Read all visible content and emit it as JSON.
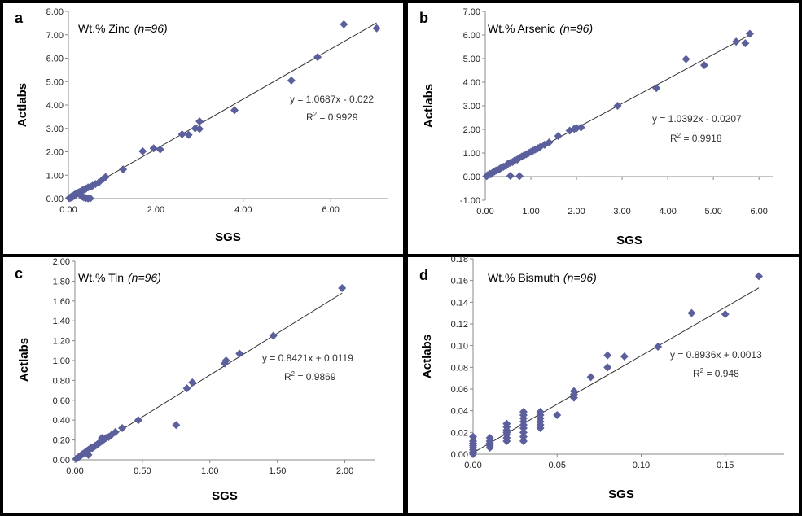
{
  "colors": {
    "marker": "#5B5F9C",
    "axis": "#888888",
    "fit": "#333333"
  },
  "chart_data": [
    {
      "id": "a",
      "type": "scatter",
      "panel_letter": "a",
      "title": "Wt.% Zinc",
      "title_n": "(n=96)",
      "xlabel": "SGS",
      "ylabel": "Actlabs",
      "xlim": [
        0,
        7.3
      ],
      "ylim": [
        0,
        8
      ],
      "xticks": [
        0,
        2,
        4,
        6
      ],
      "xtick_labels": [
        "0.00",
        "2.00",
        "4.00",
        "6.00"
      ],
      "yticks": [
        0,
        1,
        2,
        3,
        4,
        5,
        6,
        7,
        8
      ],
      "ytick_labels": [
        "0.00",
        "1.00",
        "2.00",
        "3.00",
        "4.00",
        "5.00",
        "6.00",
        "7.00",
        "8.00"
      ],
      "equation": "y = 1.0687x - 0.022",
      "r2_label": "R",
      "r2_sup": "2",
      "r2_value": " = 0.9929",
      "fit": {
        "slope": 1.0687,
        "intercept": -0.022,
        "x_range": [
          0,
          7.05
        ]
      },
      "points": [
        [
          0.02,
          0.02
        ],
        [
          0.04,
          0.03
        ],
        [
          0.05,
          0.06
        ],
        [
          0.07,
          0.05
        ],
        [
          0.08,
          0.1
        ],
        [
          0.1,
          0.08
        ],
        [
          0.12,
          0.14
        ],
        [
          0.14,
          0.12
        ],
        [
          0.15,
          0.18
        ],
        [
          0.18,
          0.2
        ],
        [
          0.2,
          0.22
        ],
        [
          0.22,
          0.25
        ],
        [
          0.25,
          0.28
        ],
        [
          0.28,
          0.3
        ],
        [
          0.3,
          0.32
        ],
        [
          0.32,
          0.35
        ],
        [
          0.35,
          0.38
        ],
        [
          0.38,
          0.4
        ],
        [
          0.4,
          0.42
        ],
        [
          0.45,
          0.48
        ],
        [
          0.5,
          0.5
        ],
        [
          0.55,
          0.55
        ],
        [
          0.62,
          0.62
        ],
        [
          0.7,
          0.7
        ],
        [
          0.8,
          0.85
        ],
        [
          0.85,
          0.92
        ],
        [
          0.3,
          0.1
        ],
        [
          0.35,
          0.05
        ],
        [
          0.4,
          0.02
        ],
        [
          0.45,
          0.01
        ],
        [
          0.5,
          0.01
        ],
        [
          1.25,
          1.25
        ],
        [
          1.7,
          2.02
        ],
        [
          1.95,
          2.15
        ],
        [
          2.1,
          2.1
        ],
        [
          2.6,
          2.75
        ],
        [
          2.75,
          2.72
        ],
        [
          2.9,
          3.0
        ],
        [
          3.0,
          2.98
        ],
        [
          3.0,
          3.3
        ],
        [
          3.8,
          3.78
        ],
        [
          5.1,
          5.05
        ],
        [
          5.7,
          6.05
        ],
        [
          6.3,
          7.45
        ],
        [
          7.05,
          7.28
        ]
      ]
    },
    {
      "id": "b",
      "type": "scatter",
      "panel_letter": "b",
      "title": "Wt.% Arsenic",
      "title_n": "(n=96)",
      "xlabel": "SGS",
      "ylabel": "Actlabs",
      "xlim": [
        0,
        6.3
      ],
      "ylim": [
        -1,
        7
      ],
      "xticks": [
        0,
        1,
        2,
        3,
        4,
        5,
        6
      ],
      "xtick_labels": [
        "0.00",
        "1.00",
        "2.00",
        "3.00",
        "4.00",
        "5.00",
        "6.00"
      ],
      "yticks": [
        -1,
        0,
        1,
        2,
        3,
        4,
        5,
        6,
        7
      ],
      "ytick_labels": [
        "-1.00",
        "0.00",
        "1.00",
        "2.00",
        "3.00",
        "4.00",
        "5.00",
        "6.00",
        "7.00"
      ],
      "equation": "y = 1.0392x - 0.0207",
      "r2_label": "R",
      "r2_sup": "2",
      "r2_value": " = 0.9918",
      "fit": {
        "slope": 1.0392,
        "intercept": -0.0207,
        "x_range": [
          0,
          5.8
        ]
      },
      "points": [
        [
          0.03,
          0.02
        ],
        [
          0.05,
          0.06
        ],
        [
          0.08,
          0.08
        ],
        [
          0.1,
          0.12
        ],
        [
          0.12,
          0.1
        ],
        [
          0.15,
          0.15
        ],
        [
          0.18,
          0.2
        ],
        [
          0.2,
          0.22
        ],
        [
          0.23,
          0.25
        ],
        [
          0.26,
          0.28
        ],
        [
          0.3,
          0.3
        ],
        [
          0.33,
          0.35
        ],
        [
          0.36,
          0.38
        ],
        [
          0.4,
          0.42
        ],
        [
          0.45,
          0.45
        ],
        [
          0.5,
          0.55
        ],
        [
          0.55,
          0.58
        ],
        [
          0.6,
          0.62
        ],
        [
          0.65,
          0.7
        ],
        [
          0.7,
          0.72
        ],
        [
          0.75,
          0.8
        ],
        [
          0.8,
          0.85
        ],
        [
          0.85,
          0.9
        ],
        [
          0.9,
          0.95
        ],
        [
          0.95,
          1.0
        ],
        [
          1.0,
          1.05
        ],
        [
          1.05,
          1.1
        ],
        [
          1.1,
          1.15
        ],
        [
          1.15,
          1.2
        ],
        [
          1.2,
          1.25
        ],
        [
          1.3,
          1.35
        ],
        [
          1.4,
          1.45
        ],
        [
          1.6,
          1.72
        ],
        [
          1.85,
          1.95
        ],
        [
          1.95,
          2.02
        ],
        [
          2.0,
          2.05
        ],
        [
          2.1,
          2.08
        ],
        [
          0.55,
          0.03
        ],
        [
          0.75,
          0.02
        ],
        [
          2.9,
          3.0
        ],
        [
          3.75,
          3.75
        ],
        [
          4.4,
          4.98
        ],
        [
          4.8,
          4.72
        ],
        [
          5.5,
          5.72
        ],
        [
          5.7,
          5.65
        ],
        [
          5.8,
          6.05
        ]
      ]
    },
    {
      "id": "c",
      "type": "scatter",
      "panel_letter": "c",
      "title": "Wt.% Tin",
      "title_n": "(n=96)",
      "xlabel": "SGS",
      "ylabel": "Actlabs",
      "xlim": [
        0,
        2.22
      ],
      "ylim": [
        0,
        2
      ],
      "xticks": [
        0,
        0.5,
        1,
        1.5,
        2
      ],
      "xtick_labels": [
        "0.00",
        "0.50",
        "1.00",
        "1.50",
        "2.00"
      ],
      "yticks": [
        0,
        0.2,
        0.4,
        0.6,
        0.8,
        1.0,
        1.2,
        1.4,
        1.6,
        1.8,
        2.0
      ],
      "ytick_labels": [
        "0.00",
        "0.20",
        "0.40",
        "0.60",
        "0.80",
        "1.00",
        "1.20",
        "1.40",
        "1.60",
        "1.80",
        "2.00"
      ],
      "equation": "y = 0.8421x + 0.0119",
      "r2_label": "R",
      "r2_sup": "2",
      "r2_value": " = 0.9869",
      "fit": {
        "slope": 0.8421,
        "intercept": 0.0119,
        "x_range": [
          0,
          1.98
        ]
      },
      "points": [
        [
          0.01,
          0.01
        ],
        [
          0.02,
          0.02
        ],
        [
          0.03,
          0.03
        ],
        [
          0.04,
          0.04
        ],
        [
          0.05,
          0.05
        ],
        [
          0.06,
          0.06
        ],
        [
          0.07,
          0.07
        ],
        [
          0.08,
          0.08
        ],
        [
          0.09,
          0.09
        ],
        [
          0.1,
          0.1
        ],
        [
          0.11,
          0.11
        ],
        [
          0.12,
          0.12
        ],
        [
          0.13,
          0.12
        ],
        [
          0.14,
          0.13
        ],
        [
          0.15,
          0.14
        ],
        [
          0.16,
          0.15
        ],
        [
          0.17,
          0.16
        ],
        [
          0.18,
          0.17
        ],
        [
          0.19,
          0.18
        ],
        [
          0.2,
          0.19
        ],
        [
          0.21,
          0.2
        ],
        [
          0.22,
          0.21
        ],
        [
          0.23,
          0.22
        ],
        [
          0.25,
          0.23
        ],
        [
          0.27,
          0.25
        ],
        [
          0.3,
          0.28
        ],
        [
          0.35,
          0.32
        ],
        [
          0.1,
          0.05
        ],
        [
          0.2,
          0.22
        ],
        [
          0.47,
          0.4
        ],
        [
          0.75,
          0.35
        ],
        [
          0.83,
          0.72
        ],
        [
          0.87,
          0.78
        ],
        [
          1.11,
          0.97
        ],
        [
          1.12,
          1.0
        ],
        [
          1.22,
          1.07
        ],
        [
          1.47,
          1.25
        ],
        [
          1.98,
          1.73
        ]
      ]
    },
    {
      "id": "d",
      "type": "scatter",
      "panel_letter": "d",
      "title": "Wt.% Bismuth",
      "title_n": "(n=96)",
      "xlabel": "SGS",
      "ylabel": "Actlabs",
      "xlim": [
        0,
        0.185
      ],
      "ylim": [
        0,
        0.18
      ],
      "xticks": [
        0,
        0.05,
        0.1,
        0.15
      ],
      "xtick_labels": [
        "0.00",
        "0.05",
        "0.10",
        "0.15"
      ],
      "yticks": [
        0,
        0.02,
        0.04,
        0.06,
        0.08,
        0.1,
        0.12,
        0.14,
        0.16,
        0.18
      ],
      "ytick_labels": [
        "0.00",
        "0.02",
        "0.04",
        "0.06",
        "0.08",
        "0.10",
        "0.12",
        "0.14",
        "0.16",
        "0.18"
      ],
      "equation": "y = 0.8936x + 0.0013",
      "r2_label": "R",
      "r2_sup": "2",
      "r2_value": " = 0.948",
      "fit": {
        "slope": 0.8936,
        "intercept": 0.0013,
        "x_range": [
          0,
          0.17
        ]
      },
      "points": [
        [
          0,
          0
        ],
        [
          0,
          0.002
        ],
        [
          0,
          0.004
        ],
        [
          0,
          0.006
        ],
        [
          0,
          0.008
        ],
        [
          0,
          0.01
        ],
        [
          0,
          0.012
        ],
        [
          0,
          0.016
        ],
        [
          0.01,
          0.006
        ],
        [
          0.01,
          0.008
        ],
        [
          0.01,
          0.01
        ],
        [
          0.01,
          0.012
        ],
        [
          0.01,
          0.015
        ],
        [
          0.02,
          0.012
        ],
        [
          0.02,
          0.015
        ],
        [
          0.02,
          0.018
        ],
        [
          0.02,
          0.02
        ],
        [
          0.02,
          0.022
        ],
        [
          0.02,
          0.025
        ],
        [
          0.02,
          0.028
        ],
        [
          0.03,
          0.012
        ],
        [
          0.03,
          0.016
        ],
        [
          0.03,
          0.02
        ],
        [
          0.03,
          0.024
        ],
        [
          0.03,
          0.027
        ],
        [
          0.03,
          0.03
        ],
        [
          0.03,
          0.033
        ],
        [
          0.03,
          0.036
        ],
        [
          0.03,
          0.039
        ],
        [
          0.04,
          0.024
        ],
        [
          0.04,
          0.027
        ],
        [
          0.04,
          0.03
        ],
        [
          0.04,
          0.033
        ],
        [
          0.04,
          0.036
        ],
        [
          0.04,
          0.039
        ],
        [
          0.05,
          0.036
        ],
        [
          0.06,
          0.052
        ],
        [
          0.06,
          0.055
        ],
        [
          0.06,
          0.058
        ],
        [
          0.07,
          0.071
        ],
        [
          0.08,
          0.08
        ],
        [
          0.08,
          0.091
        ],
        [
          0.09,
          0.09
        ],
        [
          0.11,
          0.099
        ],
        [
          0.13,
          0.13
        ],
        [
          0.15,
          0.129
        ],
        [
          0.17,
          0.164
        ]
      ]
    }
  ]
}
